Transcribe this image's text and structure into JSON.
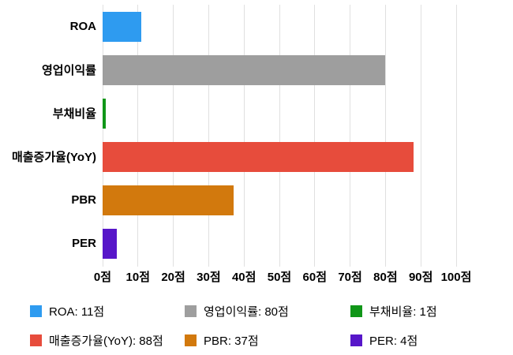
{
  "chart_data": {
    "type": "bar",
    "orientation": "horizontal",
    "title": "",
    "xlabel": "",
    "ylabel": "",
    "unit": "점",
    "categories": [
      "ROA",
      "영업이익률",
      "부채비율",
      "매출증가율(YoY)",
      "PBR",
      "PER"
    ],
    "values": [
      11,
      80,
      1,
      88,
      37,
      4
    ],
    "colors": [
      "#2E9BF0",
      "#9E9E9E",
      "#109618",
      "#E74C3C",
      "#D2790D",
      "#5716C9"
    ],
    "xlim": [
      0,
      100
    ],
    "x_ticks": [
      0,
      10,
      20,
      30,
      40,
      50,
      60,
      70,
      80,
      90,
      100
    ],
    "x_tick_labels": [
      "0점",
      "10점",
      "20점",
      "30점",
      "40점",
      "50점",
      "60점",
      "70점",
      "80점",
      "90점",
      "100점"
    ],
    "grid": true,
    "gridline_color": "#e0e0e0",
    "legend_position": "bottom",
    "legend": [
      {
        "label": "ROA: 11점",
        "color": "#2E9BF0"
      },
      {
        "label": "영업이익률: 80점",
        "color": "#9E9E9E"
      },
      {
        "label": "부채비율: 1점",
        "color": "#109618"
      },
      {
        "label": "매출증가율(YoY): 88점",
        "color": "#E74C3C"
      },
      {
        "label": "PBR: 37점",
        "color": "#D2790D"
      },
      {
        "label": "PER: 4점",
        "color": "#5716C9"
      }
    ]
  }
}
